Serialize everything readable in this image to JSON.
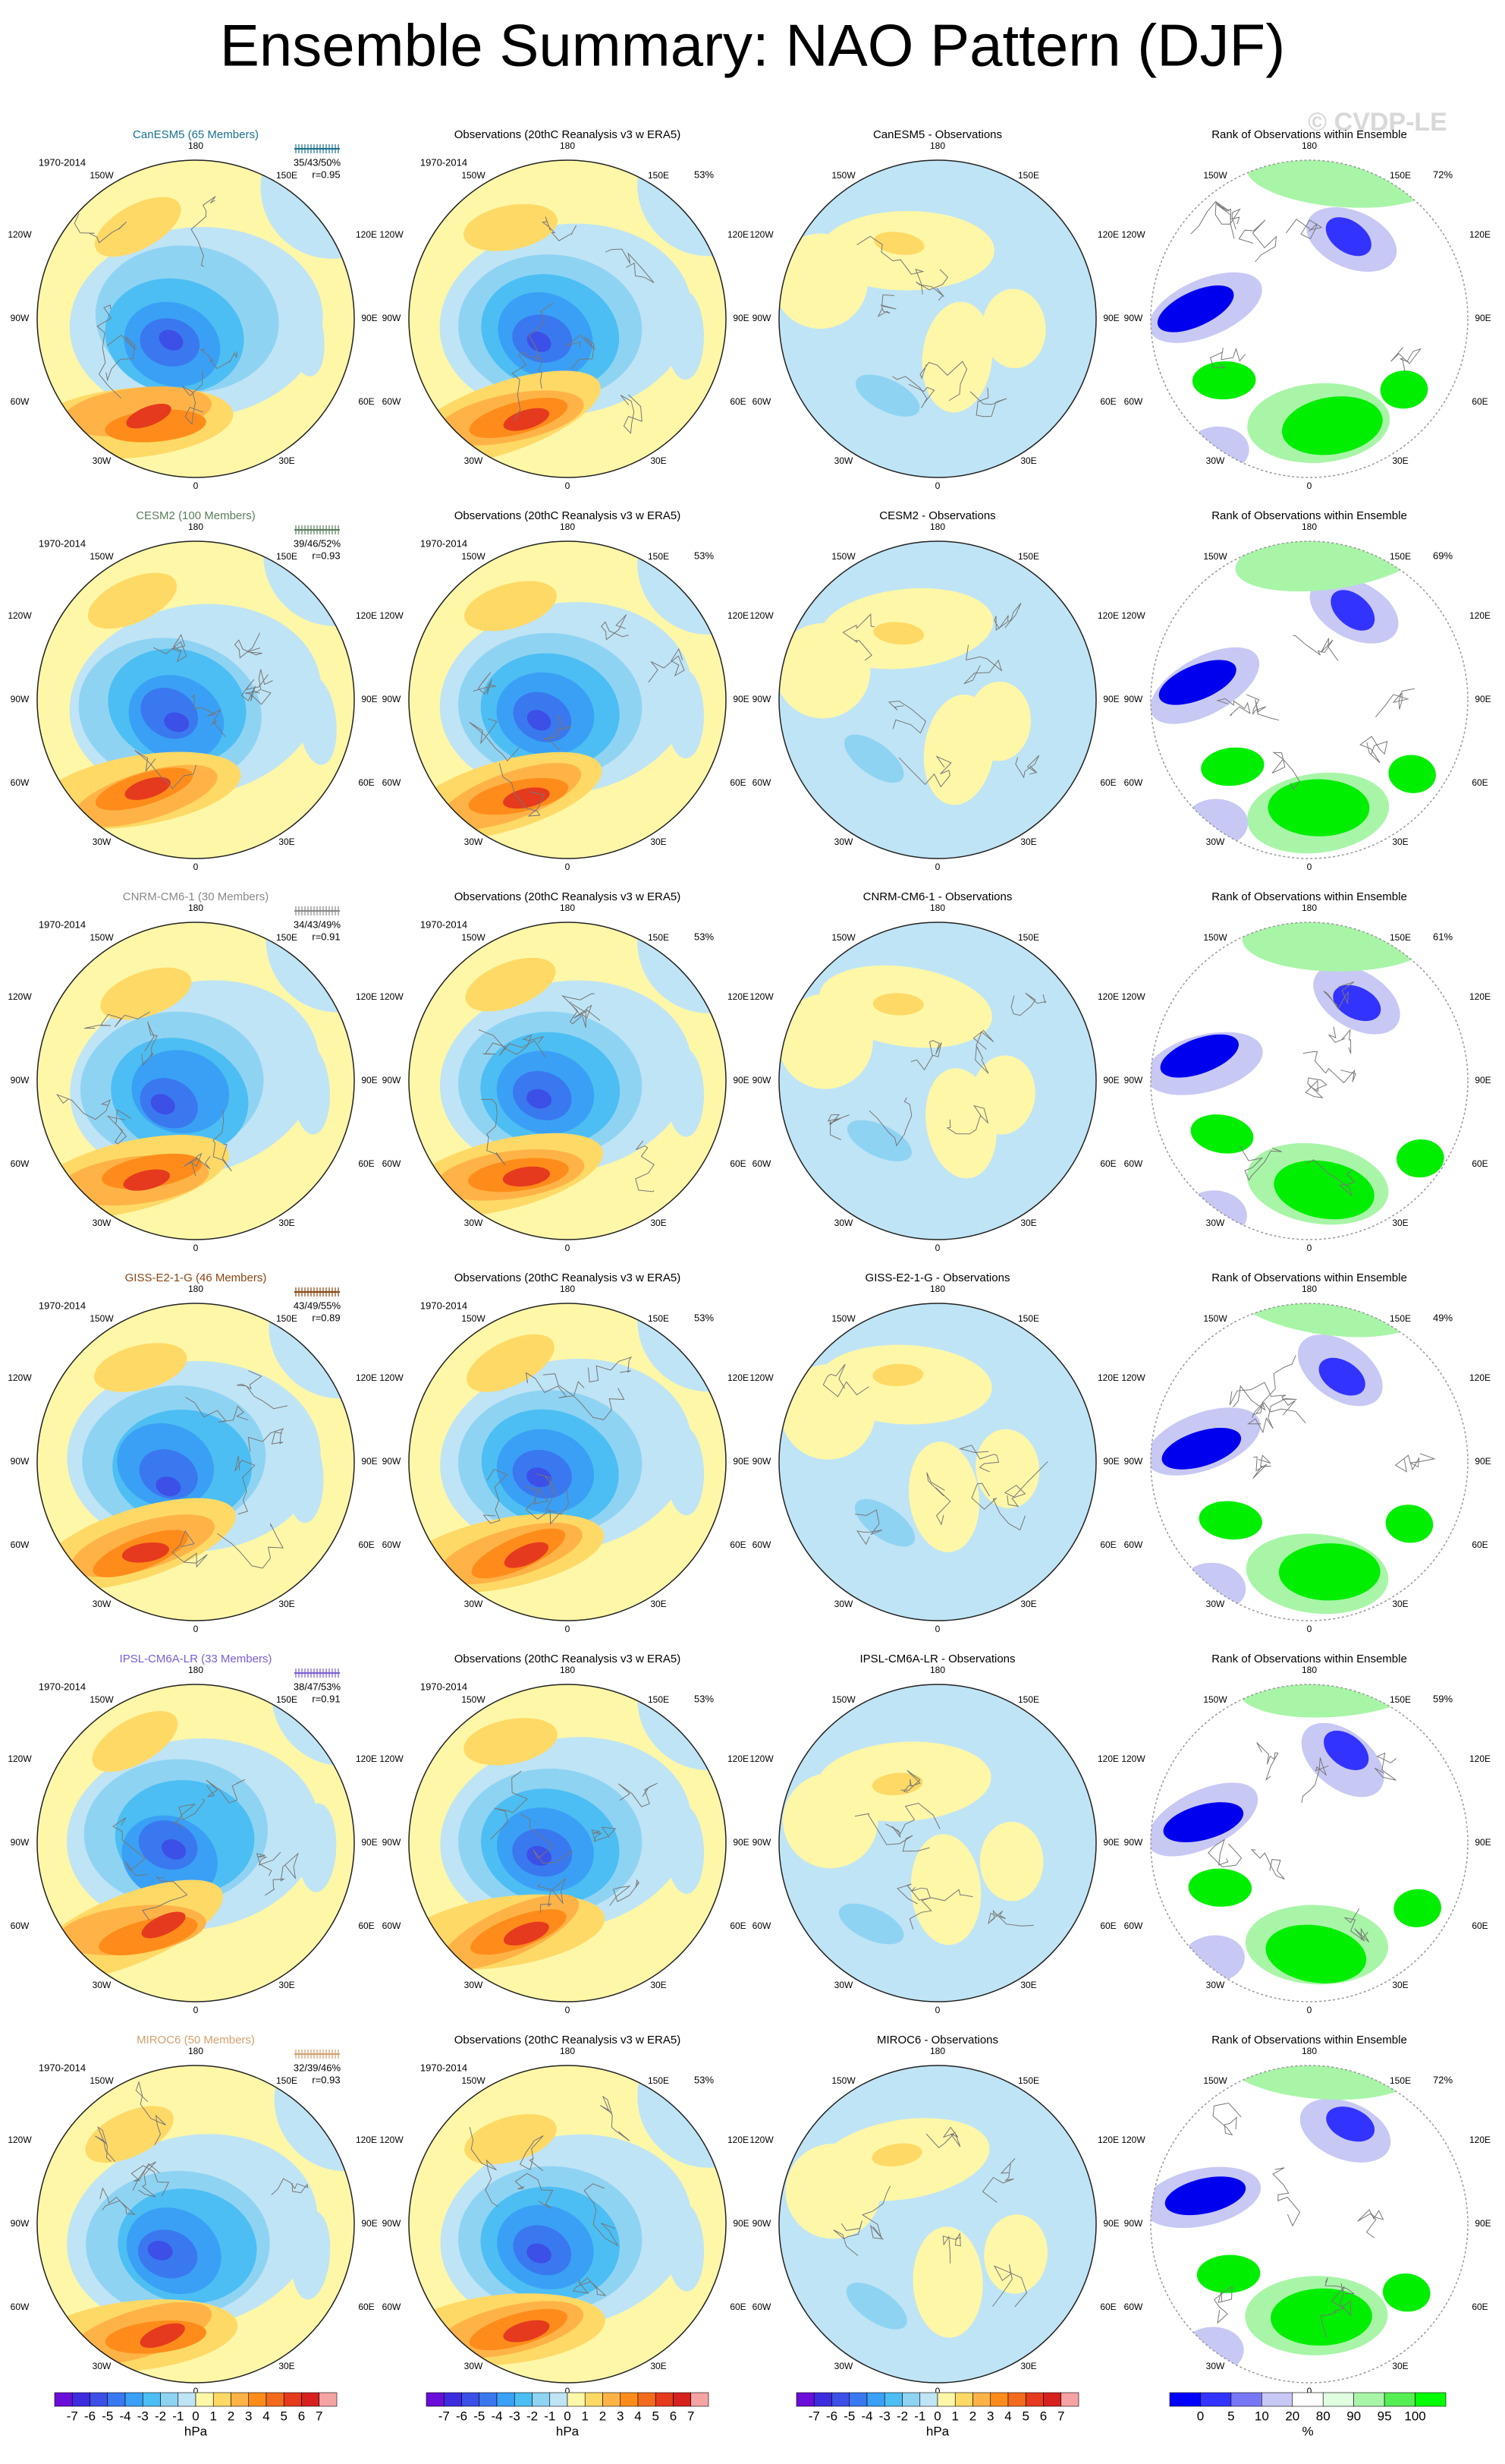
{
  "title": "Ensemble Summary: NAO Pattern (DJF)",
  "watermark": "© CVDP-LE",
  "period": "1970-2014",
  "observations_title": "Observations (20thC Reanalysis v3 w ERA5)",
  "rank_title": "Rank of Observations within Ensemble",
  "longitude_labels": [
    "180",
    "150E",
    "120E",
    "90E",
    "60E",
    "30E",
    "0",
    "30W",
    "60W",
    "90W",
    "120W",
    "150W"
  ],
  "rows": [
    {
      "model": "CanESM5 (65 Members)",
      "color": "#1a7090",
      "stats": "35/43/50%",
      "r": "r=0.95",
      "obs_percent": "53%",
      "difference_title": "CanESM5 - Observations",
      "rank_percent": "72%"
    },
    {
      "model": "CESM2 (100 Members)",
      "color": "#5a7d5a",
      "stats": "39/46/52%",
      "r": "r=0.93",
      "obs_percent": "53%",
      "difference_title": "CESM2 - Observations",
      "rank_percent": "69%"
    },
    {
      "model": "CNRM-CM6-1 (30 Members)",
      "color": "#888888",
      "stats": "34/43/49%",
      "r": "r=0.91",
      "obs_percent": "53%",
      "difference_title": "CNRM-CM6-1 - Observations",
      "rank_percent": "61%"
    },
    {
      "model": "GISS-E2-1-G (46 Members)",
      "color": "#8b4513",
      "stats": "43/49/55%",
      "r": "r=0.89",
      "obs_percent": "53%",
      "difference_title": "GISS-E2-1-G - Observations",
      "rank_percent": "49%"
    },
    {
      "model": "IPSL-CM6A-LR (33 Members)",
      "color": "#7b5cd6",
      "stats": "38/47/53%",
      "r": "r=0.91",
      "obs_percent": "53%",
      "difference_title": "IPSL-CM6A-LR - Observations",
      "rank_percent": "59%"
    },
    {
      "model": "MIROC6 (50 Members)",
      "color": "#d2a070",
      "stats": "32/39/46%",
      "r": "r=0.93",
      "obs_percent": "53%",
      "difference_title": "MIROC6 - Observations",
      "rank_percent": "72%"
    }
  ],
  "colorbar": {
    "ticks": [
      -7,
      -6,
      -5,
      -4,
      -3,
      -2,
      -1,
      0,
      1,
      2,
      3,
      4,
      5,
      6,
      7
    ],
    "unit": "hPa",
    "colors": [
      "#6a0dd8",
      "#3d2be0",
      "#3c4fe6",
      "#3a78ef",
      "#3aa0f5",
      "#4cbef3",
      "#8fd3f3",
      "#bfe4f5",
      "#fff7a8",
      "#ffd966",
      "#ffb347",
      "#ff8c1a",
      "#f26b1d",
      "#e53a1e",
      "#d6201e",
      "#f5a3a3"
    ]
  },
  "rank_colorbar": {
    "ticks": [
      0,
      5,
      10,
      20,
      80,
      90,
      95,
      100
    ],
    "unit": "%",
    "colors": [
      "#0000ff",
      "#3333ff",
      "#7777f5",
      "#c8c8f5",
      "#ffffff",
      "#e0ffe0",
      "#a8f5a8",
      "#55ee55",
      "#00ff00"
    ]
  }
}
